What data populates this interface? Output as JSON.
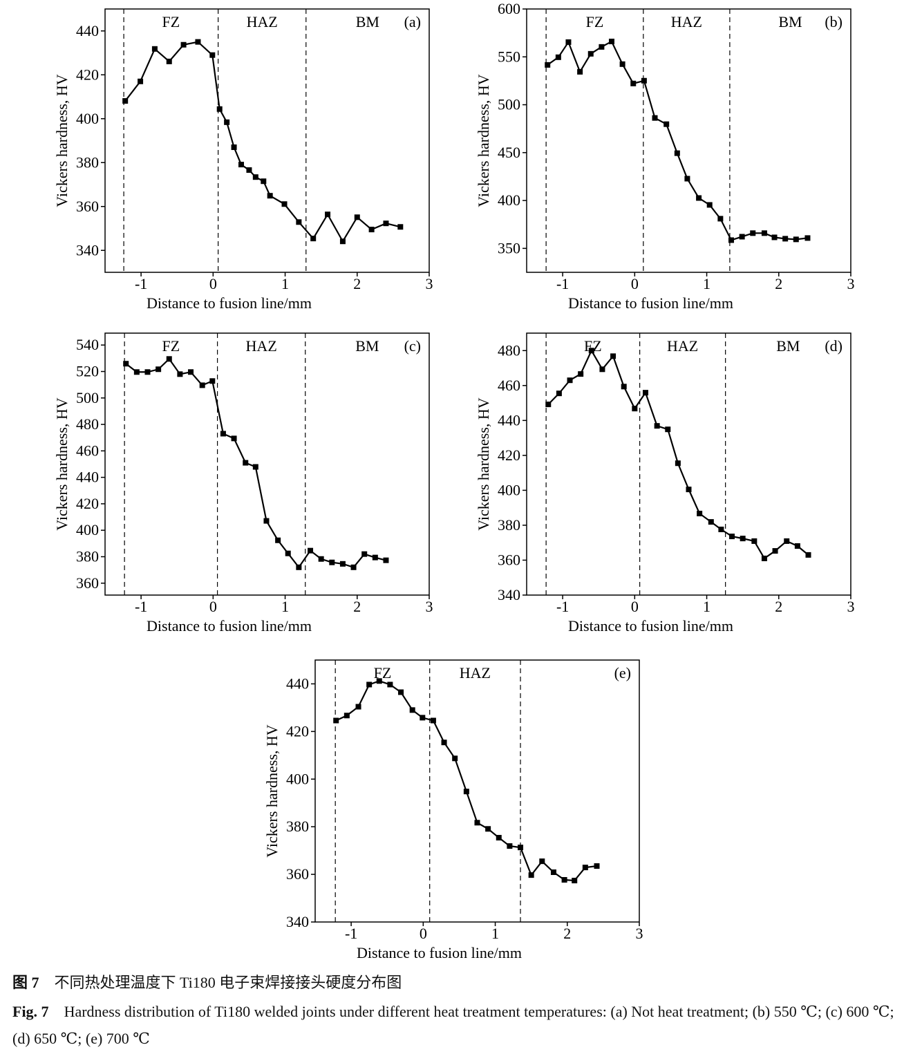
{
  "chart_data": [
    {
      "type": "line",
      "panel_label": "(a)",
      "xlabel": "Distance to fusion line/mm",
      "ylabel": "Vickers hardness, HV",
      "xlim": [
        -1.5,
        3
      ],
      "xticks": [
        -1,
        0,
        1,
        2,
        3
      ],
      "ylim": [
        330,
        450
      ],
      "yticks": [
        340,
        360,
        380,
        400,
        420,
        440
      ],
      "vlines": [
        -1.24,
        0.07,
        1.29
      ],
      "regions": [
        "FZ",
        "HAZ",
        "BM"
      ],
      "color": "#000000",
      "x": [
        -1.22,
        -1.01,
        -0.81,
        -0.61,
        -0.41,
        -0.21,
        -0.01,
        0.09,
        0.19,
        0.29,
        0.39,
        0.5,
        0.59,
        0.7,
        0.79,
        0.99,
        1.19,
        1.39,
        1.59,
        1.8,
        2.0,
        2.2,
        2.4,
        2.6
      ],
      "values": [
        408.1,
        417,
        431.8,
        426.1,
        433.7,
        435,
        429,
        404.4,
        398.4,
        387,
        379.1,
        376.6,
        373.4,
        371.5,
        364.9,
        361.1,
        352.9,
        345.4,
        356.4,
        344.1,
        355.1,
        349.5,
        352.3,
        350.7
      ]
    },
    {
      "type": "line",
      "panel_label": "(b)",
      "xlabel": "Distance to fusion line/mm",
      "ylabel": "Vickers hardness, HV",
      "xlim": [
        -1.5,
        3
      ],
      "xticks": [
        -1,
        0,
        1,
        2,
        3
      ],
      "ylim": [
        325,
        600
      ],
      "yticks": [
        350,
        400,
        450,
        500,
        550,
        600
      ],
      "vlines": [
        -1.23,
        0.12,
        1.32
      ],
      "regions": [
        "FZ",
        "HAZ",
        "BM"
      ],
      "color": "#000000",
      "x": [
        -1.21,
        -1.06,
        -0.92,
        -0.76,
        -0.61,
        -0.46,
        -0.32,
        -0.17,
        -0.02,
        0.13,
        0.28,
        0.44,
        0.59,
        0.73,
        0.89,
        1.04,
        1.19,
        1.34,
        1.49,
        1.64,
        1.8,
        1.94,
        2.09,
        2.24,
        2.4
      ],
      "values": [
        541.6,
        549.6,
        565.4,
        534.4,
        553.2,
        560.4,
        566.1,
        542.4,
        522.2,
        525.1,
        486.2,
        479.7,
        449.4,
        422.8,
        402.6,
        395.4,
        381,
        358.6,
        362.2,
        365.9,
        365.9,
        361.5,
        360.1,
        359.4,
        360.8
      ]
    },
    {
      "type": "line",
      "panel_label": "(c)",
      "xlabel": "Distance to fusion line/mm",
      "ylabel": "Vickers hardness, HV",
      "xlim": [
        -1.5,
        3
      ],
      "xticks": [
        -1,
        0,
        1,
        2,
        3
      ],
      "ylim": [
        351,
        549
      ],
      "yticks": [
        360,
        380,
        400,
        420,
        440,
        460,
        480,
        500,
        520,
        540
      ],
      "vlines": [
        -1.23,
        0.06,
        1.28
      ],
      "regions": [
        "FZ",
        "HAZ",
        "BM"
      ],
      "color": "#000000",
      "x": [
        -1.21,
        -1.06,
        -0.91,
        -0.76,
        -0.61,
        -0.46,
        -0.31,
        -0.15,
        -0.01,
        0.14,
        0.29,
        0.45,
        0.59,
        0.74,
        0.9,
        1.04,
        1.19,
        1.35,
        1.5,
        1.65,
        1.8,
        1.95,
        2.1,
        2.25,
        2.4
      ],
      "values": [
        525.9,
        519.6,
        519.6,
        521.7,
        529.5,
        518,
        519.6,
        509.6,
        512.8,
        473,
        469.4,
        451,
        447.9,
        407.1,
        392.4,
        382.5,
        372,
        384.6,
        378.3,
        375.7,
        374.6,
        372,
        382,
        379.4,
        377.3
      ]
    },
    {
      "type": "line",
      "panel_label": "(d)",
      "xlabel": "Distance to fusion line/mm",
      "ylabel": "Vickers hardness, HV",
      "xlim": [
        -1.5,
        3
      ],
      "xticks": [
        -1,
        0,
        1,
        2,
        3
      ],
      "ylim": [
        340,
        490
      ],
      "yticks": [
        340,
        360,
        380,
        400,
        420,
        440,
        460,
        480
      ],
      "vlines": [
        -1.23,
        0.07,
        1.26
      ],
      "regions": [
        "FZ",
        "HAZ",
        "BM"
      ],
      "color": "#000000",
      "x": [
        -1.2,
        -1.05,
        -0.9,
        -0.75,
        -0.6,
        -0.45,
        -0.3,
        -0.15,
        0.0,
        0.15,
        0.31,
        0.46,
        0.6,
        0.75,
        0.9,
        1.06,
        1.2,
        1.35,
        1.5,
        1.66,
        1.8,
        1.95,
        2.11,
        2.26,
        2.41
      ],
      "values": [
        449.2,
        455.5,
        463,
        466.6,
        480,
        469.3,
        476.8,
        459.4,
        446.8,
        455.9,
        436.9,
        434.9,
        415.5,
        400.5,
        386.7,
        381.9,
        377.6,
        373.6,
        372.4,
        370.9,
        361,
        365.3,
        370.9,
        368.1,
        363
      ]
    },
    {
      "type": "line",
      "panel_label": "(e)",
      "xlabel": "Distance to fusion line/mm",
      "ylabel": "Vickers hardness, HV",
      "xlim": [
        -1.5,
        3
      ],
      "xticks": [
        -1,
        0,
        1,
        2,
        3
      ],
      "ylim": [
        340,
        450
      ],
      "yticks": [
        340,
        360,
        380,
        400,
        420,
        440
      ],
      "vlines": [
        -1.22,
        0.09,
        1.35
      ],
      "regions": [
        "FZ",
        "HAZ"
      ],
      "color": "#000000",
      "x": [
        -1.21,
        -1.06,
        -0.9,
        -0.75,
        -0.61,
        -0.46,
        -0.31,
        -0.15,
        -0.01,
        0.14,
        0.29,
        0.44,
        0.6,
        0.75,
        0.9,
        1.05,
        1.2,
        1.35,
        1.5,
        1.65,
        1.81,
        1.96,
        2.1,
        2.25,
        2.41
      ],
      "values": [
        424.6,
        426.7,
        430.4,
        439.7,
        441.2,
        439.7,
        436.5,
        429,
        425.8,
        424.6,
        415.4,
        408.7,
        394.8,
        381.7,
        379.1,
        375.4,
        371.9,
        371.3,
        359.7,
        365.5,
        360.9,
        357.7,
        357.4,
        362.9,
        363.5
      ]
    }
  ],
  "caption": {
    "cn_label": "图 7",
    "cn_text": "不同热处理温度下 Ti180 电子束焊接接头硬度分布图",
    "en_label": "Fig. 7",
    "en_text": "Hardness distribution of Ti180 welded joints under different heat treatment temperatures: (a) Not heat treatment; (b) 550 ℃; (c) 600 ℃; (d) 650 ℃; (e) 700 ℃"
  }
}
